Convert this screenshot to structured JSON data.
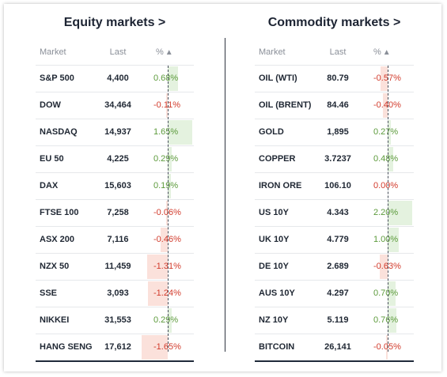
{
  "equity": {
    "title": "Equity markets >",
    "headers": {
      "market": "Market",
      "last": "Last",
      "pct": "%",
      "sort_icon": "▲"
    },
    "rows": [
      {
        "market": "S&P 500",
        "last": "4,400",
        "pct": "0.68%",
        "value": 0.68
      },
      {
        "market": "DOW",
        "last": "34,464",
        "pct": "-0.11%",
        "value": -0.11
      },
      {
        "market": "NASDAQ",
        "last": "14,937",
        "pct": "1.65%",
        "value": 1.65
      },
      {
        "market": "EU 50",
        "last": "4,225",
        "pct": "0.29%",
        "value": 0.29
      },
      {
        "market": "DAX",
        "last": "15,603",
        "pct": "0.19%",
        "value": 0.19
      },
      {
        "market": "FTSE 100",
        "last": "7,258",
        "pct": "-0.06%",
        "value": -0.06
      },
      {
        "market": "ASX 200",
        "last": "7,116",
        "pct": "-0.46%",
        "value": -0.46
      },
      {
        "market": "NZX 50",
        "last": "11,459",
        "pct": "-1.31%",
        "value": -1.31
      },
      {
        "market": "SSE",
        "last": "3,093",
        "pct": "-1.24%",
        "value": -1.24
      },
      {
        "market": "NIKKEI",
        "last": "31,553",
        "pct": "0.29%",
        "value": 0.29
      },
      {
        "market": "HANG SENG",
        "last": "17,612",
        "pct": "-1.65%",
        "value": -1.65
      }
    ]
  },
  "commodity": {
    "title": "Commodity markets >",
    "headers": {
      "market": "Market",
      "last": "Last",
      "pct": "%",
      "sort_icon": "▲"
    },
    "rows": [
      {
        "market": "OIL (WTI)",
        "last": "80.79",
        "pct": "-0.57%",
        "value": -0.57
      },
      {
        "market": "OIL (BRENT)",
        "last": "84.46",
        "pct": "-0.40%",
        "value": -0.4
      },
      {
        "market": "GOLD",
        "last": "1,895",
        "pct": "0.27%",
        "value": 0.27
      },
      {
        "market": "COPPER",
        "last": "3.7237",
        "pct": "0.48%",
        "value": 0.48
      },
      {
        "market": "IRON ORE",
        "last": "106.10",
        "pct": "0.00%",
        "value": 0.0
      },
      {
        "market": "US 10Y",
        "last": "4.343",
        "pct": "2.20%",
        "value": 2.2
      },
      {
        "market": "UK 10Y",
        "last": "4.779",
        "pct": "1.00%",
        "value": 1.0
      },
      {
        "market": "DE 10Y",
        "last": "2.689",
        "pct": "-0.63%",
        "value": -0.63
      },
      {
        "market": "AUS 10Y",
        "last": "4.297",
        "pct": "0.70%",
        "value": 0.7
      },
      {
        "market": "NZ 10Y",
        "last": "5.119",
        "pct": "0.76%",
        "value": 0.76
      },
      {
        "market": "BITCOIN",
        "last": "26,141",
        "pct": "-0.05%",
        "value": -0.05
      }
    ]
  },
  "colors": {
    "positive_text": "#5c9a3b",
    "negative_text": "#d23b2c",
    "positive_bar": "#e4f2df",
    "negative_bar": "#fbe1db"
  }
}
